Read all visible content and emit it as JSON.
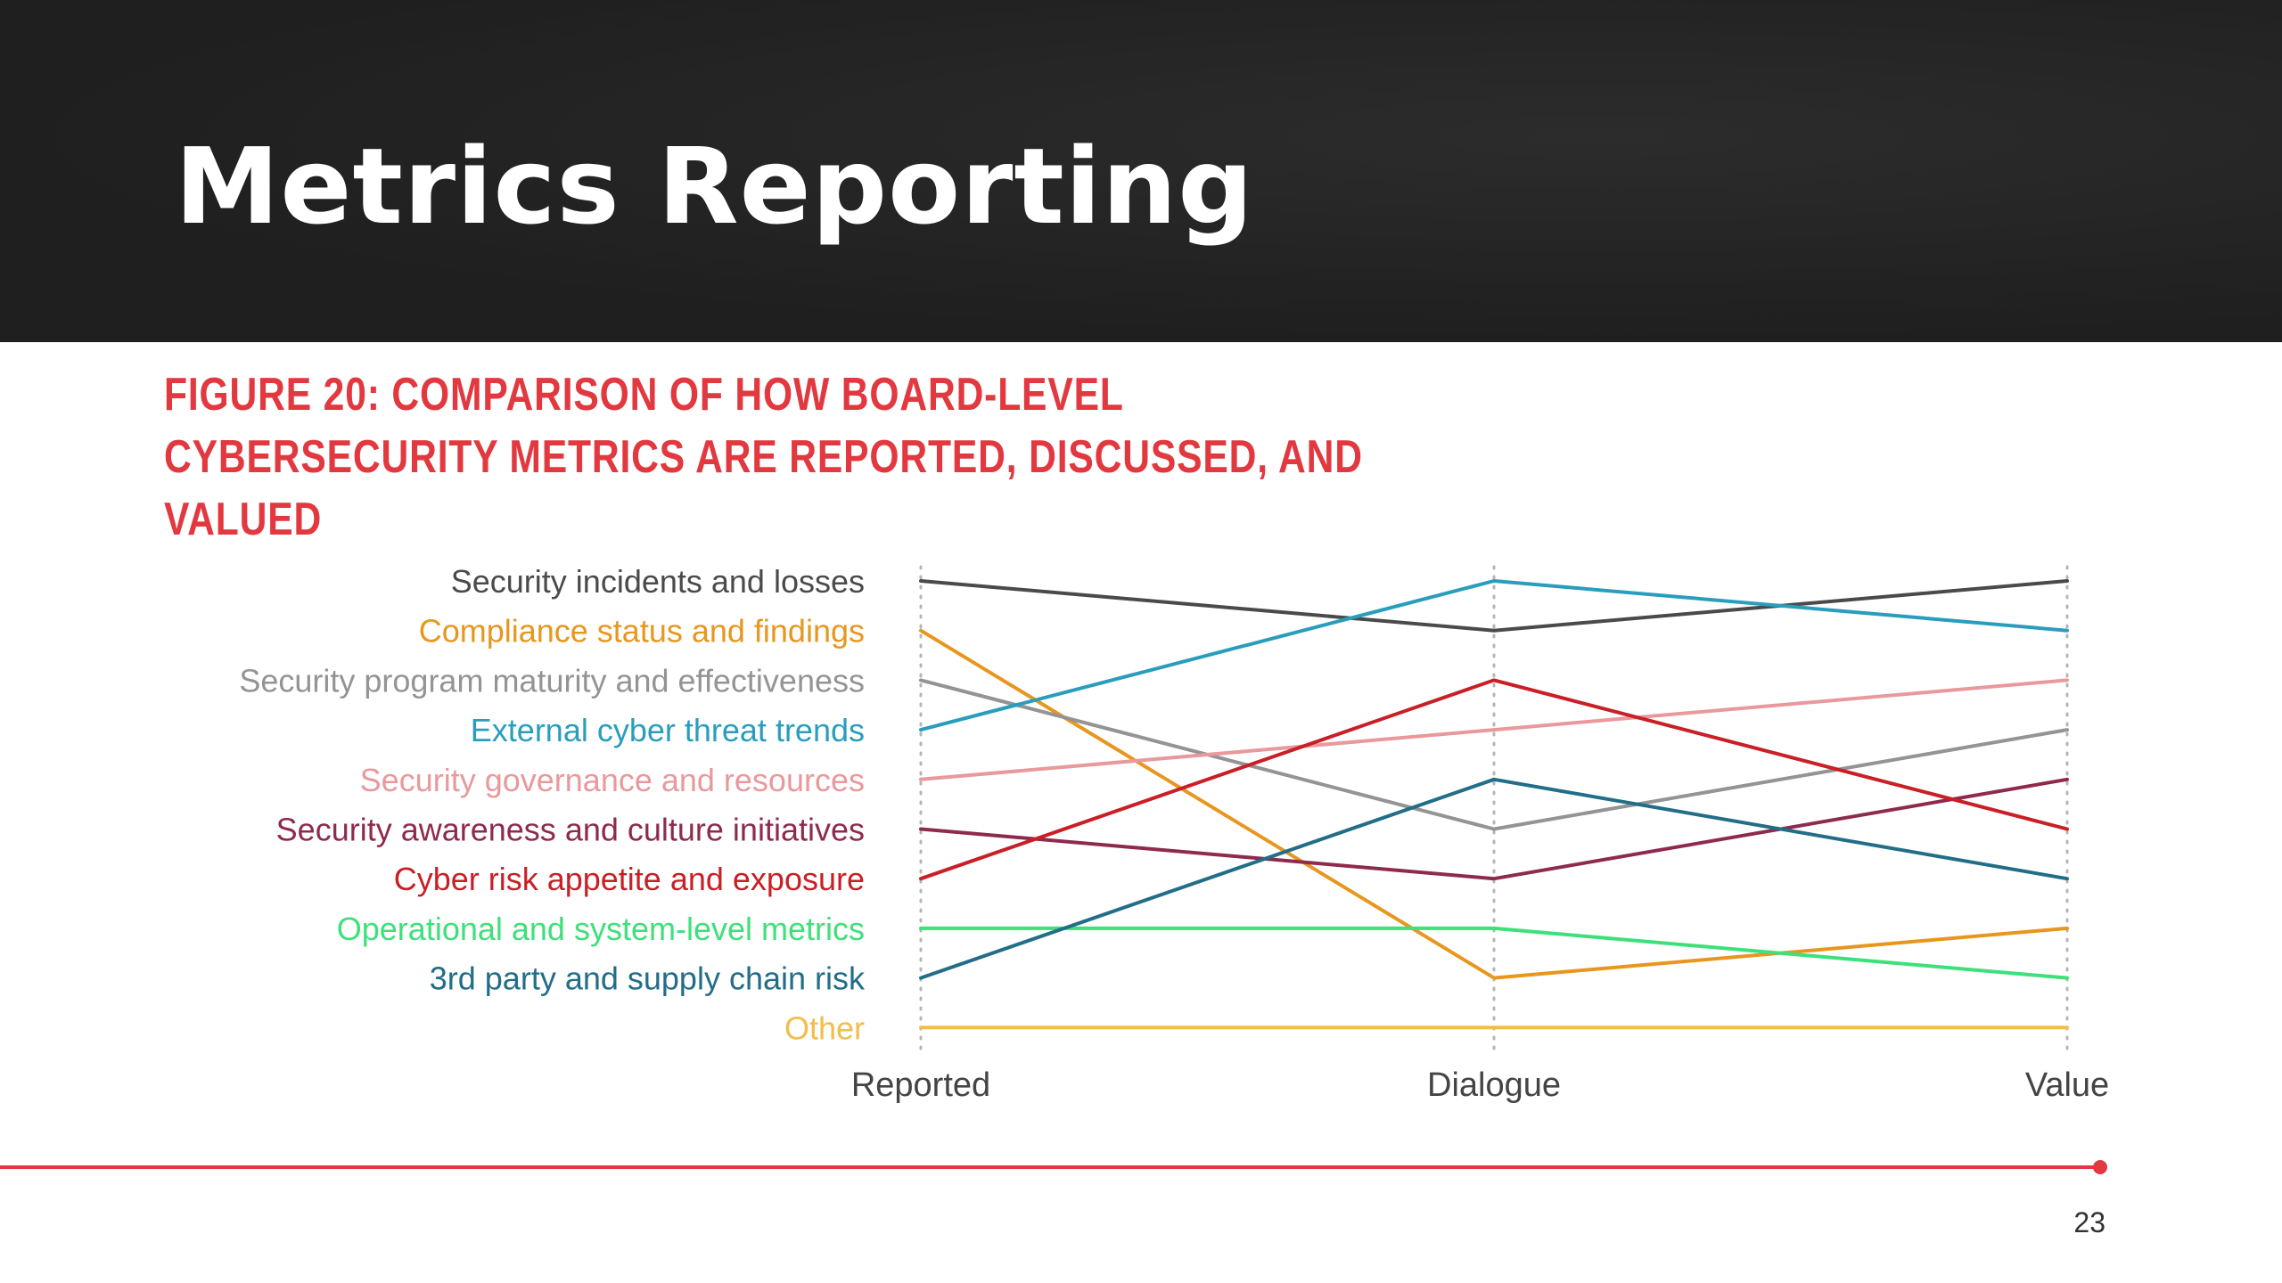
{
  "slide": {
    "title": "Metrics Reporting",
    "figure_caption": "Figure 20: Comparison of how board-level cybersecurity metrics are reported, discussed, and valued",
    "page_number": "23",
    "accent_color": "#e2383f",
    "header_color": "#232323"
  },
  "chart_data": {
    "type": "line",
    "chart_subtype": "slope / bump chart (rank ordering)",
    "x": [
      "Reported",
      "Dialogue",
      "Value"
    ],
    "y_axis": "rank (1 = top)",
    "ylim": [
      1,
      10
    ],
    "y_inverted": true,
    "grid": "dotted vertical guides at each category",
    "legend_placement": "left (series labels at the Reported end)",
    "series": [
      {
        "name": "Security incidents and losses",
        "values": [
          1,
          2,
          1
        ],
        "color": "#4a4a4a"
      },
      {
        "name": "Compliance status and findings",
        "values": [
          2,
          9,
          8
        ],
        "color": "#e8961e"
      },
      {
        "name": "Security program maturity and effectiveness",
        "values": [
          3,
          6,
          4
        ],
        "color": "#949494"
      },
      {
        "name": "External cyber threat trends",
        "values": [
          4,
          1,
          2
        ],
        "color": "#2a9dbd"
      },
      {
        "name": "Security governance and resources",
        "values": [
          5,
          4,
          3
        ],
        "color": "#e9999c"
      },
      {
        "name": "Security awareness and culture initiatives",
        "values": [
          6,
          7,
          5
        ],
        "color": "#8e2a4e"
      },
      {
        "name": "Cyber risk appetite and exposure",
        "values": [
          7,
          3,
          6
        ],
        "color": "#c91f26"
      },
      {
        "name": "Operational and system-level metrics",
        "values": [
          8,
          8,
          9
        ],
        "color": "#3ee07a"
      },
      {
        "name": "3rd party and supply chain risk",
        "values": [
          9,
          5,
          7
        ],
        "color": "#226d87"
      },
      {
        "name": "Other",
        "values": [
          10,
          10,
          10
        ],
        "color": "#f2bd4c"
      }
    ]
  }
}
